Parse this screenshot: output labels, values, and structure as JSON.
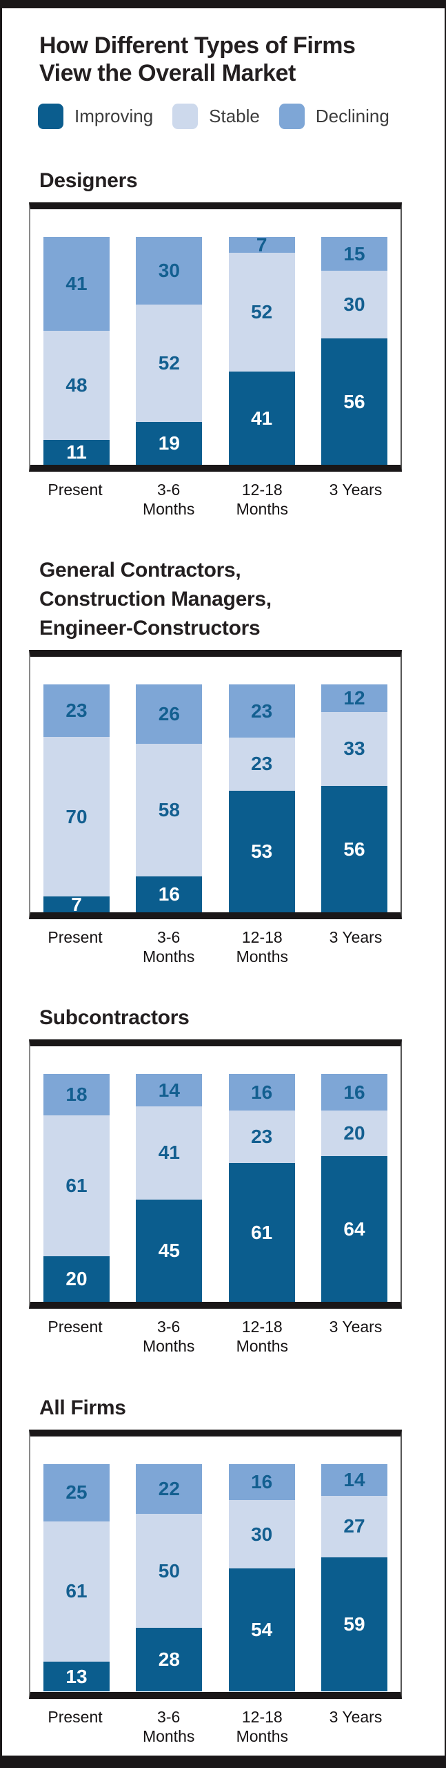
{
  "title": "How Different Types of Firms\nView the Overall Market",
  "legend": [
    {
      "label": "Improving",
      "color": "#0b5d8e"
    },
    {
      "label": "Stable",
      "color": "#cdd9ec"
    },
    {
      "label": "Declining",
      "color": "#7ea6d6"
    }
  ],
  "colors": {
    "frame_black": "#1a1718",
    "heading_text": "#231f20",
    "legend_text": "#3c3c3c",
    "value_label_on_improving": "#ffffff",
    "value_label_on_stable": "#135f90",
    "value_label_on_declining": "#135f90"
  },
  "chart_data": [
    {
      "type": "bar",
      "stacked": true,
      "title": "Designers",
      "categories": [
        "Present",
        "3-6\nMonths",
        "12-18\nMonths",
        "3 Years"
      ],
      "series": [
        {
          "name": "Improving",
          "values": [
            11,
            19,
            41,
            56
          ]
        },
        {
          "name": "Stable",
          "values": [
            48,
            52,
            52,
            30
          ]
        },
        {
          "name": "Declining",
          "values": [
            41,
            30,
            7,
            15
          ]
        }
      ],
      "value_labels": true,
      "legend_position": "top-shared",
      "ylim": [
        0,
        100
      ]
    },
    {
      "type": "bar",
      "stacked": true,
      "title": "General Contractors,\nConstruction Managers,\nEngineer-Constructors",
      "categories": [
        "Present",
        "3-6\nMonths",
        "12-18\nMonths",
        "3 Years"
      ],
      "series": [
        {
          "name": "Improving",
          "values": [
            7,
            16,
            53,
            56
          ]
        },
        {
          "name": "Stable",
          "values": [
            70,
            58,
            23,
            33
          ]
        },
        {
          "name": "Declining",
          "values": [
            23,
            26,
            23,
            12
          ]
        }
      ],
      "value_labels": true,
      "legend_position": "top-shared",
      "ylim": [
        0,
        100
      ]
    },
    {
      "type": "bar",
      "stacked": true,
      "title": "Subcontractors",
      "categories": [
        "Present",
        "3-6\nMonths",
        "12-18\nMonths",
        "3 Years"
      ],
      "series": [
        {
          "name": "Improving",
          "values": [
            20,
            45,
            61,
            64
          ]
        },
        {
          "name": "Stable",
          "values": [
            61,
            41,
            23,
            20
          ]
        },
        {
          "name": "Declining",
          "values": [
            18,
            14,
            16,
            16
          ]
        }
      ],
      "value_labels": true,
      "legend_position": "top-shared",
      "ylim": [
        0,
        100
      ]
    },
    {
      "type": "bar",
      "stacked": true,
      "title": "All Firms",
      "categories": [
        "Present",
        "3-6\nMonths",
        "12-18\nMonths",
        "3 Years"
      ],
      "series": [
        {
          "name": "Improving",
          "values": [
            13,
            28,
            54,
            59
          ]
        },
        {
          "name": "Stable",
          "values": [
            61,
            50,
            30,
            27
          ]
        },
        {
          "name": "Declining",
          "values": [
            25,
            22,
            16,
            14
          ]
        }
      ],
      "value_labels": true,
      "legend_position": "top-shared",
      "ylim": [
        0,
        100
      ]
    }
  ]
}
